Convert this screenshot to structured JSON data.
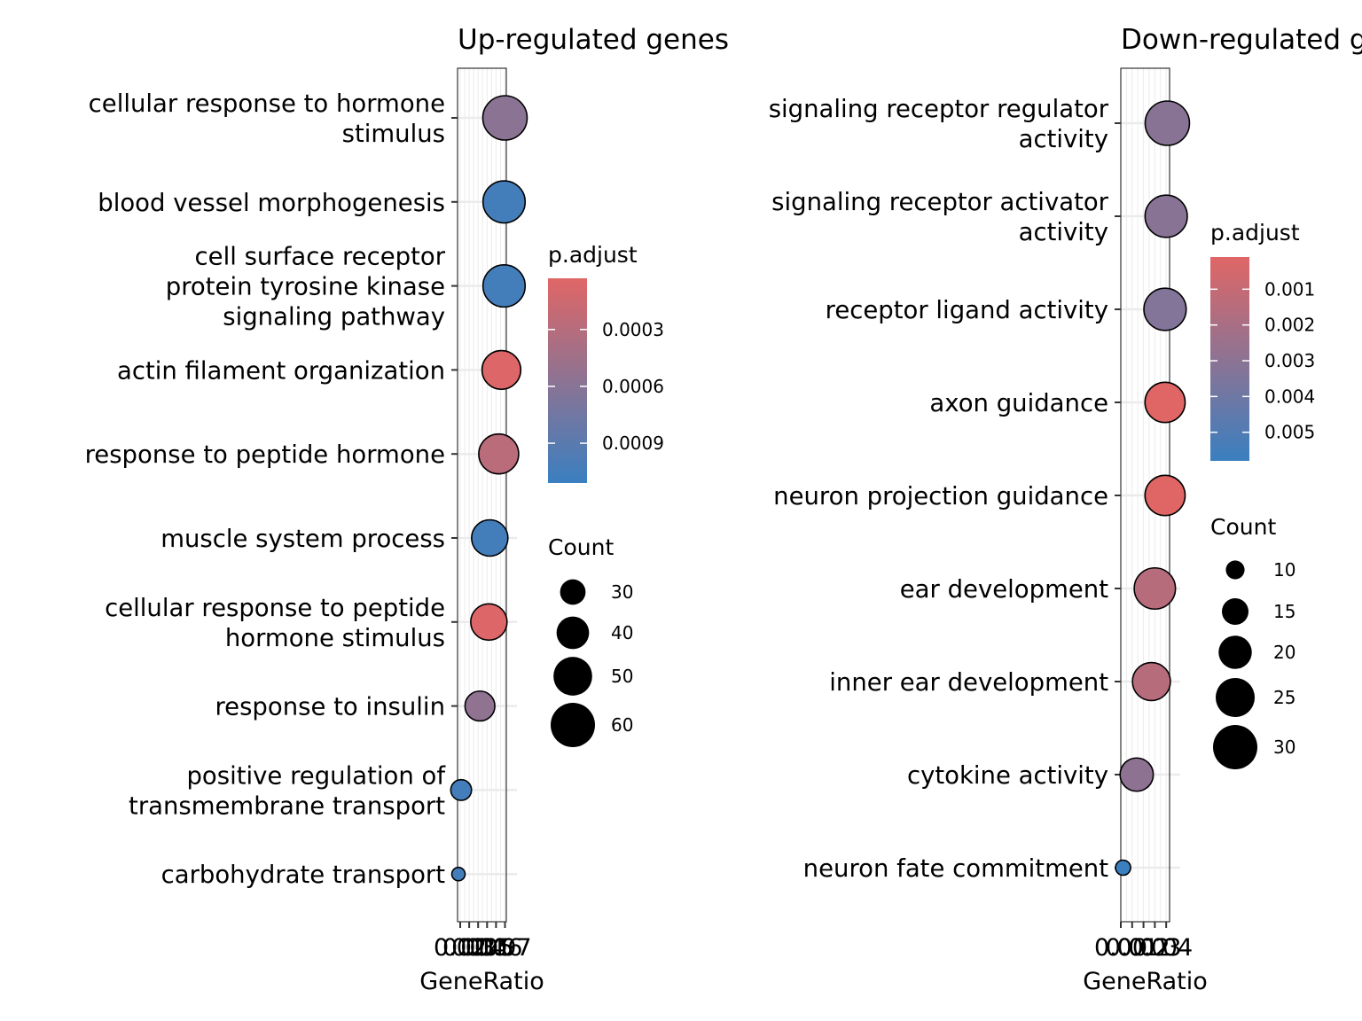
{
  "chart_data": [
    {
      "type": "scatter",
      "title": "Up-regulated genes",
      "xlabel": "GeneRatio",
      "ylabel": "",
      "categories": [
        "cellular response to hormone\nstimulus",
        "blood vessel morphogenesis",
        "cell surface receptor\nprotein tyrosine kinase\nsignaling pathway",
        "actin filament organization",
        "response to peptide hormone",
        "muscle system process",
        "cellular response to peptide\nhormone stimulus",
        "response to insulin",
        "positive regulation of\ntransmembrane transport",
        "carbohydrate transport"
      ],
      "x": [
        0.07,
        0.069,
        0.069,
        0.066,
        0.063,
        0.053,
        0.052,
        0.042,
        0.021,
        0.018
      ],
      "count": [
        60,
        56,
        56,
        50,
        52,
        46,
        46,
        36,
        24,
        16
      ],
      "p_adjust": [
        0.00058,
        0.00105,
        0.00105,
        5e-05,
        0.00028,
        0.00105,
        5e-05,
        0.00055,
        0.00105,
        0.00105
      ],
      "xlim": [
        0.017,
        0.0715
      ],
      "x_ticks": [
        "0.02",
        "0.03",
        "0.04",
        "0.05",
        "0.06",
        "0.07"
      ],
      "x_tick_values": [
        0.02,
        0.03,
        0.04,
        0.05,
        0.06,
        0.07
      ],
      "x_tick_text": "0.020.030.040.050.060.07",
      "grid": true,
      "color_legend": {
        "title": "p.adjust",
        "low_color": "#E06666",
        "high_color": "#3A7FC0",
        "range": [
          3e-05,
          0.00111
        ],
        "ticks": [
          "0.0003",
          "0.0006",
          "0.0009"
        ],
        "tick_values": [
          0.0003,
          0.0006,
          0.0009
        ]
      },
      "size_legend": {
        "title": "Count",
        "labels": [
          "30",
          "40",
          "50",
          "60"
        ],
        "values": [
          30,
          40,
          50,
          60
        ]
      },
      "size_domain": [
        16,
        60
      ],
      "legend_position": "right"
    },
    {
      "type": "scatter",
      "title": "Down-regulated genes",
      "xlabel": "GeneRatio",
      "ylabel": "",
      "categories": [
        "signaling receptor regulator\nactivity",
        "signaling receptor activator\nactivity",
        "receptor ligand activity",
        "axon guidance",
        "neuron projection guidance",
        "ear development",
        "inner ear development",
        "cytokine activity",
        "neuron fate commitment"
      ],
      "x": [
        0.041,
        0.04,
        0.039,
        0.039,
        0.039,
        0.03,
        0.027,
        0.014,
        0.002
      ],
      "count": [
        30,
        28,
        28,
        26,
        26,
        27,
        24,
        20,
        8
      ],
      "p_adjust": [
        0.0031,
        0.0031,
        0.0033,
        0.0001,
        0.0001,
        0.0015,
        0.0015,
        0.0029,
        0.0058
      ],
      "xlim": [
        0.0,
        0.043
      ],
      "x_ticks": [
        "0.00",
        "0.01",
        "0.02",
        "0.03",
        "0.04"
      ],
      "x_tick_values": [
        0.0,
        0.01,
        0.02,
        0.03,
        0.04
      ],
      "x_tick_text": "0.000.010.020.030.04",
      "grid": true,
      "color_legend": {
        "title": "p.adjust",
        "low_color": "#E06666",
        "high_color": "#3A7FC0",
        "range": [
          0.0001,
          0.0058
        ],
        "ticks": [
          "0.001",
          "0.002",
          "0.003",
          "0.004",
          "0.005"
        ],
        "tick_values": [
          0.001,
          0.002,
          0.003,
          0.004,
          0.005
        ]
      },
      "size_legend": {
        "title": "Count",
        "labels": [
          "10",
          "15",
          "20",
          "25",
          "30"
        ],
        "values": [
          10,
          15,
          20,
          25,
          30
        ]
      },
      "size_domain": [
        8,
        30
      ],
      "legend_position": "right"
    }
  ]
}
